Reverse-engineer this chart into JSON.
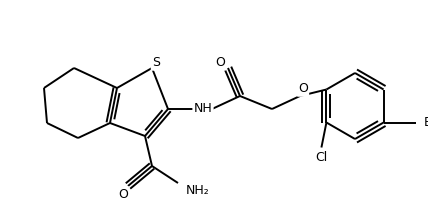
{
  "bg_color": "#ffffff",
  "lw": 1.4,
  "figsize": [
    4.28,
    2.16
  ],
  "dpi": 100,
  "xlim": [
    0,
    428
  ],
  "ylim": [
    0,
    216
  ]
}
